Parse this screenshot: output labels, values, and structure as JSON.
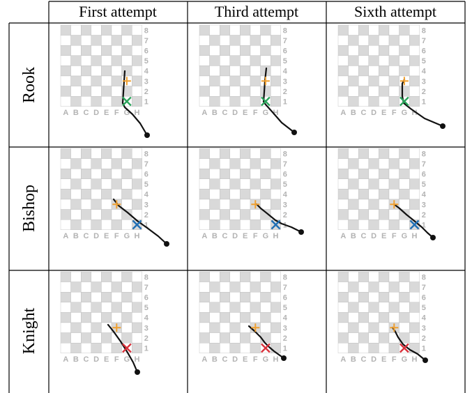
{
  "columns": [
    "First attempt",
    "Third attempt",
    "Sixth attempt"
  ],
  "rows": [
    "Rook",
    "Bishop",
    "Knight"
  ],
  "board": {
    "files": [
      "A",
      "B",
      "C",
      "D",
      "E",
      "F",
      "G",
      "H"
    ],
    "ranks": [
      "1",
      "2",
      "3",
      "4",
      "5",
      "6",
      "7",
      "8"
    ]
  },
  "colors": {
    "start_marker": "#f0a030",
    "rook_target": "#2aa35a",
    "bishop_target": "#1f6fb5",
    "knight_target": "#d9303a",
    "trajectory": "#111111",
    "dark_square": "#d9d9d9",
    "light_square": "#ffffff"
  },
  "panels": [
    {
      "piece": "Rook",
      "attempt": "First attempt",
      "start_square": "G3",
      "target_square": "G1",
      "target_marker": "x",
      "start_marker": "+"
    },
    {
      "piece": "Rook",
      "attempt": "Third attempt",
      "start_square": "G3",
      "target_square": "G1",
      "target_marker": "x",
      "start_marker": "+"
    },
    {
      "piece": "Rook",
      "attempt": "Sixth attempt",
      "start_square": "G3",
      "target_square": "G1",
      "target_marker": "x",
      "start_marker": "+"
    },
    {
      "piece": "Bishop",
      "attempt": "First attempt",
      "start_square": "F3",
      "target_square": "H1",
      "target_marker": "x",
      "start_marker": "+"
    },
    {
      "piece": "Bishop",
      "attempt": "Third attempt",
      "start_square": "F3",
      "target_square": "H1",
      "target_marker": "x",
      "start_marker": "+"
    },
    {
      "piece": "Bishop",
      "attempt": "Sixth attempt",
      "start_square": "F3",
      "target_square": "H1",
      "target_marker": "x",
      "start_marker": "+"
    },
    {
      "piece": "Knight",
      "attempt": "First attempt",
      "start_square": "F3",
      "target_square": "G1",
      "target_marker": "x",
      "start_marker": "+"
    },
    {
      "piece": "Knight",
      "attempt": "Third attempt",
      "start_square": "F3",
      "target_square": "G1",
      "target_marker": "x",
      "start_marker": "+"
    },
    {
      "piece": "Knight",
      "attempt": "Sixth attempt",
      "start_square": "F3",
      "target_square": "G1",
      "target_marker": "x",
      "start_marker": "+"
    }
  ]
}
